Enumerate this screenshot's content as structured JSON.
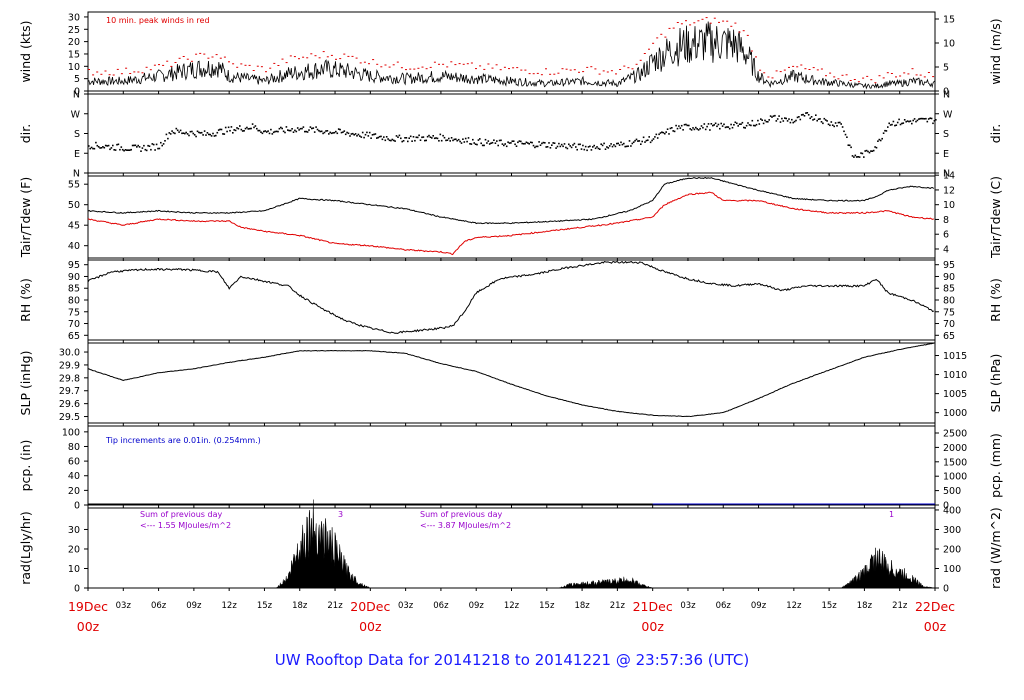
{
  "footer_title": "UW Rooftop Data for 20141218  to  20141221 @ 23:57:36  (UTC)",
  "colors": {
    "axis": "#000000",
    "red": "#e00000",
    "blue": "#0000cc",
    "purple": "#9900cc",
    "title": "#1a1aff"
  },
  "time_axis": {
    "hour_labels": [
      "00z",
      "03z",
      "06z",
      "09z",
      "12z",
      "15z",
      "18z",
      "21z"
    ],
    "day_labels": [
      {
        "date": "19Dec",
        "hour": "00z"
      },
      {
        "date": "20Dec",
        "hour": "00z"
      },
      {
        "date": "21Dec",
        "hour": "00z"
      },
      {
        "date": "22Dec",
        "hour": "00z"
      }
    ]
  },
  "panels": [
    {
      "id": "wind",
      "left_label": "wind (kts)",
      "right_label": "wind (m/s)",
      "left_ticks": [
        "0",
        "5",
        "10",
        "15",
        "20",
        "25",
        "30"
      ],
      "right_ticks": [
        "0",
        "5",
        "10",
        "15"
      ],
      "note": "10 min. peak winds in red"
    },
    {
      "id": "dir",
      "left_label": "dir.",
      "right_label": "dir.",
      "left_ticks": [
        "N",
        "E",
        "S",
        "W",
        "N"
      ],
      "right_ticks": [
        "N",
        "E",
        "S",
        "W",
        "N"
      ]
    },
    {
      "id": "temp",
      "left_label": "Tair/Tdew (F)",
      "right_label": "Tair/Tdew (C)",
      "left_ticks": [
        "40",
        "45",
        "50",
        "55"
      ],
      "right_ticks": [
        "4",
        "6",
        "8",
        "10",
        "12",
        "14"
      ]
    },
    {
      "id": "rh",
      "left_label": "RH (%)",
      "right_label": "RH (%)",
      "left_ticks": [
        "65",
        "70",
        "75",
        "80",
        "85",
        "90",
        "95"
      ],
      "right_ticks": [
        "65",
        "70",
        "75",
        "80",
        "85",
        "90",
        "95"
      ]
    },
    {
      "id": "slp",
      "left_label": "SLP (inHg)",
      "right_label": "SLP (hPa)",
      "left_ticks": [
        "29.5",
        "29.6",
        "29.7",
        "29.8",
        "29.9",
        "30.0"
      ],
      "right_ticks": [
        "1000",
        "1005",
        "1010",
        "1015"
      ]
    },
    {
      "id": "pcp",
      "left_label": "pcp. (in)",
      "right_label": "pcp. (mm)",
      "left_ticks": [
        "0",
        "20",
        "40",
        "60",
        "80",
        "100"
      ],
      "right_ticks": [
        "0",
        "500",
        "1000",
        "1500",
        "2000",
        "2500"
      ],
      "note": "Tip increments are 0.01in. (0.254mm.)"
    },
    {
      "id": "rad",
      "left_label": "rad(Lgly/hr)",
      "right_label": "rad (W/m^2)",
      "left_ticks": [
        "0",
        "10",
        "20",
        "30"
      ],
      "right_ticks": [
        "0",
        "100",
        "200",
        "300",
        "400"
      ],
      "notes": [
        {
          "line1": "Sum of previous day",
          "line2": "<--- 1.55 MJoules/m^2"
        },
        {
          "line1": "Sum of previous day",
          "line2": "<--- 3.87 MJoules/m^2"
        }
      ],
      "peak_marks": [
        "3",
        "1"
      ]
    }
  ],
  "chart_data": {
    "type": "line",
    "x_unit": "hours since 19Dec 00z",
    "xlim": [
      0,
      72
    ],
    "series": [
      {
        "panel": "wind",
        "name": "wind speed (kts)",
        "points": [
          [
            0,
            4
          ],
          [
            3,
            4
          ],
          [
            6,
            6
          ],
          [
            9,
            9
          ],
          [
            11,
            10
          ],
          [
            12,
            6
          ],
          [
            15,
            4
          ],
          [
            17,
            7
          ],
          [
            20,
            9
          ],
          [
            22,
            8
          ],
          [
            24,
            6
          ],
          [
            27,
            5
          ],
          [
            30,
            6
          ],
          [
            33,
            5
          ],
          [
            36,
            4
          ],
          [
            39,
            3
          ],
          [
            42,
            4
          ],
          [
            45,
            3
          ],
          [
            47,
            7
          ],
          [
            48,
            12
          ],
          [
            50,
            18
          ],
          [
            53,
            20
          ],
          [
            55,
            19
          ],
          [
            56,
            15
          ],
          [
            57,
            6
          ],
          [
            58,
            3
          ],
          [
            60,
            6
          ],
          [
            62,
            4
          ],
          [
            64,
            3
          ],
          [
            66,
            2
          ],
          [
            67,
            2
          ],
          [
            68,
            3
          ],
          [
            69,
            3
          ],
          [
            70,
            4
          ],
          [
            72,
            3
          ]
        ]
      },
      {
        "panel": "wind",
        "name": "10 min. peak winds",
        "points": [
          [
            0,
            8
          ],
          [
            3,
            8
          ],
          [
            6,
            10
          ],
          [
            9,
            14
          ],
          [
            11,
            15
          ],
          [
            12,
            11
          ],
          [
            15,
            9
          ],
          [
            17,
            13
          ],
          [
            20,
            15
          ],
          [
            22,
            14
          ],
          [
            24,
            12
          ],
          [
            27,
            10
          ],
          [
            30,
            11
          ],
          [
            33,
            10
          ],
          [
            36,
            9
          ],
          [
            39,
            8
          ],
          [
            42,
            9
          ],
          [
            45,
            8
          ],
          [
            47,
            12
          ],
          [
            48,
            20
          ],
          [
            50,
            27
          ],
          [
            53,
            29
          ],
          [
            55,
            27
          ],
          [
            56,
            22
          ],
          [
            57,
            10
          ],
          [
            58,
            6
          ],
          [
            60,
            10
          ],
          [
            62,
            8
          ],
          [
            64,
            6
          ],
          [
            66,
            5
          ],
          [
            67,
            5
          ],
          [
            68,
            7
          ],
          [
            69,
            7
          ],
          [
            70,
            8
          ],
          [
            72,
            6
          ]
        ]
      },
      {
        "panel": "dir",
        "name": "wind direction (deg)",
        "points": [
          [
            0,
            130
          ],
          [
            4,
            115
          ],
          [
            6,
            125
          ],
          [
            7,
            195
          ],
          [
            10,
            180
          ],
          [
            12,
            200
          ],
          [
            14,
            215
          ],
          [
            15,
            190
          ],
          [
            18,
            205
          ],
          [
            22,
            185
          ],
          [
            26,
            160
          ],
          [
            30,
            165
          ],
          [
            34,
            140
          ],
          [
            38,
            135
          ],
          [
            40,
            130
          ],
          [
            42,
            120
          ],
          [
            45,
            130
          ],
          [
            48,
            160
          ],
          [
            50,
            210
          ],
          [
            53,
            215
          ],
          [
            55,
            220
          ],
          [
            56,
            225
          ],
          [
            57,
            235
          ],
          [
            58,
            255
          ],
          [
            60,
            240
          ],
          [
            61,
            265
          ],
          [
            62,
            255
          ],
          [
            63,
            230
          ],
          [
            64,
            230
          ],
          [
            65,
            75
          ],
          [
            66,
            90
          ],
          [
            67,
            130
          ],
          [
            68,
            230
          ],
          [
            70,
            240
          ],
          [
            72,
            245
          ]
        ]
      },
      {
        "panel": "temp",
        "name": "Tair (F)",
        "points": [
          [
            0,
            48.5
          ],
          [
            3,
            48
          ],
          [
            6,
            48.5
          ],
          [
            9,
            48
          ],
          [
            12,
            48
          ],
          [
            15,
            48.5
          ],
          [
            17,
            50.5
          ],
          [
            18,
            51.5
          ],
          [
            21,
            51
          ],
          [
            24,
            50
          ],
          [
            27,
            49
          ],
          [
            30,
            47
          ],
          [
            33,
            45.5
          ],
          [
            36,
            45.5
          ],
          [
            40,
            46
          ],
          [
            43,
            46.5
          ],
          [
            46,
            48.5
          ],
          [
            48,
            51
          ],
          [
            49,
            55
          ],
          [
            51,
            56.5
          ],
          [
            53,
            56.5
          ],
          [
            55,
            55
          ],
          [
            57,
            53.5
          ],
          [
            60,
            51.5
          ],
          [
            63,
            51
          ],
          [
            66,
            51
          ],
          [
            67,
            52
          ],
          [
            68,
            53.5
          ],
          [
            70,
            54.5
          ],
          [
            72,
            54
          ]
        ]
      },
      {
        "panel": "temp",
        "name": "Tdew (F)",
        "points": [
          [
            0,
            46.5
          ],
          [
            3,
            45
          ],
          [
            6,
            46.5
          ],
          [
            9,
            46
          ],
          [
            12,
            46
          ],
          [
            13,
            44.5
          ],
          [
            15,
            43.5
          ],
          [
            18,
            42.5
          ],
          [
            21,
            40.5
          ],
          [
            24,
            40
          ],
          [
            27,
            39
          ],
          [
            30,
            38.5
          ],
          [
            31,
            38
          ],
          [
            32,
            41
          ],
          [
            33,
            42
          ],
          [
            36,
            42.5
          ],
          [
            39,
            43.5
          ],
          [
            42,
            44.5
          ],
          [
            45,
            45.5
          ],
          [
            48,
            47
          ],
          [
            49,
            50
          ],
          [
            51,
            52.5
          ],
          [
            53,
            53
          ],
          [
            54,
            51
          ],
          [
            57,
            51
          ],
          [
            60,
            49
          ],
          [
            63,
            48
          ],
          [
            66,
            48
          ],
          [
            68,
            48.5
          ],
          [
            70,
            47
          ],
          [
            72,
            46.5
          ]
        ]
      },
      {
        "panel": "rh",
        "name": "RH (%)",
        "points": [
          [
            0,
            88
          ],
          [
            2,
            92
          ],
          [
            5,
            93
          ],
          [
            8,
            93
          ],
          [
            11,
            92
          ],
          [
            12,
            85
          ],
          [
            13,
            90
          ],
          [
            15,
            88
          ],
          [
            17,
            86
          ],
          [
            18,
            82
          ],
          [
            20,
            76
          ],
          [
            22,
            71
          ],
          [
            24,
            68
          ],
          [
            26,
            66
          ],
          [
            28,
            67
          ],
          [
            30,
            68
          ],
          [
            31,
            69
          ],
          [
            32,
            75
          ],
          [
            33,
            83
          ],
          [
            35,
            89
          ],
          [
            38,
            91
          ],
          [
            41,
            94
          ],
          [
            44,
            96
          ],
          [
            47,
            96
          ],
          [
            49,
            92
          ],
          [
            51,
            89
          ],
          [
            53,
            87
          ],
          [
            55,
            86
          ],
          [
            57,
            87
          ],
          [
            59,
            84
          ],
          [
            61,
            86
          ],
          [
            64,
            86
          ],
          [
            66,
            86
          ],
          [
            67,
            89
          ],
          [
            68,
            83
          ],
          [
            70,
            80
          ],
          [
            72,
            75
          ]
        ]
      },
      {
        "panel": "slp",
        "name": "SLP (inHg)",
        "points": [
          [
            0,
            29.87
          ],
          [
            3,
            29.78
          ],
          [
            6,
            29.84
          ],
          [
            9,
            29.87
          ],
          [
            12,
            29.92
          ],
          [
            15,
            29.96
          ],
          [
            18,
            30.01
          ],
          [
            21,
            30.01
          ],
          [
            24,
            30.01
          ],
          [
            27,
            29.99
          ],
          [
            30,
            29.91
          ],
          [
            33,
            29.85
          ],
          [
            36,
            29.75
          ],
          [
            39,
            29.66
          ],
          [
            42,
            29.59
          ],
          [
            45,
            29.54
          ],
          [
            48,
            29.51
          ],
          [
            51,
            29.5
          ],
          [
            54,
            29.53
          ],
          [
            57,
            29.64
          ],
          [
            60,
            29.76
          ],
          [
            63,
            29.86
          ],
          [
            66,
            29.96
          ],
          [
            69,
            30.02
          ],
          [
            72,
            30.07
          ]
        ]
      },
      {
        "panel": "pcp",
        "name": "precip (in)",
        "points": [
          [
            0,
            0
          ],
          [
            72,
            0
          ]
        ]
      },
      {
        "panel": "rad",
        "name": "radiation (W/m^2)",
        "points": [
          [
            0,
            0
          ],
          [
            16,
            0
          ],
          [
            17,
            60
          ],
          [
            18,
            250
          ],
          [
            19,
            360
          ],
          [
            20,
            300
          ],
          [
            21,
            220
          ],
          [
            22,
            100
          ],
          [
            23,
            30
          ],
          [
            24,
            0
          ],
          [
            40,
            0
          ],
          [
            41,
            20
          ],
          [
            43,
            30
          ],
          [
            45,
            40
          ],
          [
            46,
            50
          ],
          [
            47,
            20
          ],
          [
            48,
            0
          ],
          [
            64,
            0
          ],
          [
            65,
            40
          ],
          [
            66,
            90
          ],
          [
            67,
            180
          ],
          [
            68,
            120
          ],
          [
            69,
            90
          ],
          [
            70,
            60
          ],
          [
            71,
            10
          ],
          [
            72,
            0
          ]
        ]
      }
    ]
  }
}
